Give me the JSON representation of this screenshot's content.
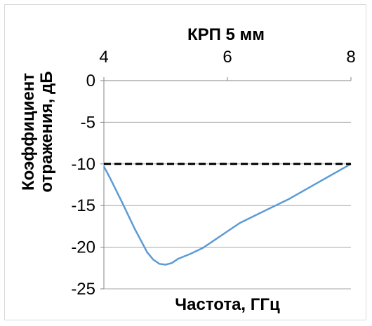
{
  "chart_data": {
    "type": "line",
    "title": "",
    "xlabel": "Частота, ГГц",
    "x2label": "КРП 5 мм",
    "ylabel_lines": [
      "Коэффициент",
      "отражения, дБ"
    ],
    "xlim": [
      4,
      8
    ],
    "ylim": [
      -25,
      0
    ],
    "xticks": [
      4,
      6,
      8
    ],
    "xtick_labels": [
      "4",
      "6",
      "8"
    ],
    "yticks": [
      0,
      -5,
      -10,
      -15,
      -20,
      -25
    ],
    "ytick_labels": [
      "0",
      "-5",
      "-10",
      "-15",
      "-20",
      "-25"
    ],
    "grid": true,
    "x_axis_position": "top",
    "legend": "none",
    "series": [
      {
        "style": "solid",
        "color": "#5b9bd5",
        "x": [
          4.0,
          4.1,
          4.3,
          4.5,
          4.7,
          4.8,
          4.9,
          5.0,
          5.1,
          5.2,
          5.4,
          5.6,
          6.0,
          6.2,
          6.5,
          7.0,
          7.5,
          8.0
        ],
        "y": [
          -10.3,
          -11.7,
          -14.7,
          -17.8,
          -20.6,
          -21.5,
          -22.0,
          -22.1,
          -21.9,
          -21.4,
          -20.8,
          -20.1,
          -18.1,
          -17.1,
          -16.0,
          -14.2,
          -12.1,
          -10.0
        ]
      },
      {
        "style": "dashed",
        "color": "#000000",
        "x": [
          4,
          8
        ],
        "y": [
          -10,
          -10
        ]
      }
    ]
  }
}
